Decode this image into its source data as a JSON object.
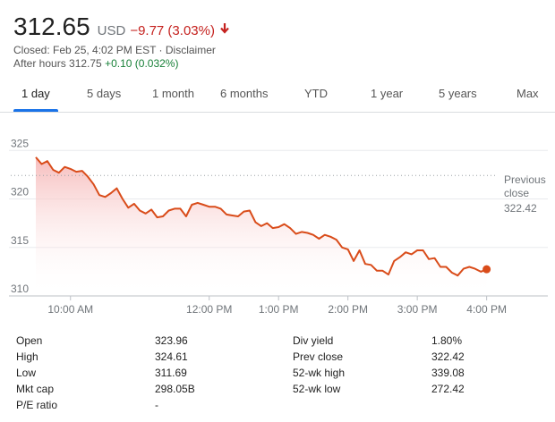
{
  "quote": {
    "price": "312.65",
    "currency": "USD",
    "change": "−9.77 (3.03%)",
    "closed_prefix": "Closed: Feb 25, 4:02 PM EST · ",
    "disclaimer": "Disclaimer",
    "after_hours_prefix": "After hours 312.75 ",
    "after_hours_change": "+0.10 (0.032%)"
  },
  "tabs": [
    "1 day",
    "5 days",
    "1 month",
    "6 months",
    "YTD",
    "1 year",
    "5 years",
    "Max"
  ],
  "active_tab": "1 day",
  "colors": {
    "line": "#d94c1a",
    "negative": "#c5221f",
    "positive": "#188038",
    "accent": "#1a73e8",
    "fill": "#f8c6c6"
  },
  "chart_data": {
    "type": "line",
    "y_ticks": [
      "325",
      "320",
      "315",
      "310"
    ],
    "x_ticks": [
      "10:00 AM",
      "12:00 PM",
      "1:00 PM",
      "2:00 PM",
      "3:00 PM",
      "4:00 PM"
    ],
    "ylim": [
      310,
      326.5
    ],
    "grid": true,
    "previous_close": {
      "label_line1": "Previous",
      "label_line2": "close",
      "value": "322.42",
      "y": 322.42
    },
    "series": [
      {
        "x": [
          "09:30",
          "09:35",
          "09:40",
          "09:45",
          "09:50",
          "09:55",
          "10:00",
          "10:05",
          "10:10",
          "10:15",
          "10:20",
          "10:25",
          "10:30",
          "10:35",
          "10:40",
          "10:45",
          "10:50",
          "10:55",
          "11:00",
          "11:05",
          "11:10",
          "11:15",
          "11:20",
          "11:25",
          "11:30",
          "11:35",
          "11:40",
          "11:45",
          "11:50",
          "11:55",
          "12:00",
          "12:05",
          "12:10",
          "12:15",
          "12:20",
          "12:25",
          "12:30",
          "12:35",
          "12:40",
          "12:45",
          "12:50",
          "12:55",
          "13:00",
          "13:05",
          "13:10",
          "13:15",
          "13:20",
          "13:25",
          "13:30",
          "13:35",
          "13:40",
          "13:45",
          "13:50",
          "13:55",
          "14:00",
          "14:05",
          "14:10",
          "14:15",
          "14:20",
          "14:25",
          "14:30",
          "14:35",
          "14:40",
          "14:45",
          "14:50",
          "14:55",
          "15:00",
          "15:05",
          "15:10",
          "15:15",
          "15:20",
          "15:25",
          "15:30",
          "15:35",
          "15:40",
          "15:45",
          "15:50",
          "15:55",
          "16:00"
        ],
        "values": [
          324.3,
          323.6,
          323.9,
          323.0,
          322.7,
          323.3,
          323.1,
          322.8,
          322.9,
          322.3,
          321.5,
          320.4,
          320.2,
          320.6,
          321.1,
          320.0,
          319.1,
          319.5,
          318.8,
          318.5,
          318.9,
          318.1,
          318.2,
          318.8,
          319.0,
          319.0,
          318.2,
          319.4,
          319.6,
          319.4,
          319.2,
          319.2,
          319.0,
          318.4,
          318.3,
          318.2,
          318.7,
          318.8,
          317.6,
          317.2,
          317.5,
          317.0,
          317.1,
          317.4,
          317.0,
          316.4,
          316.6,
          316.5,
          316.3,
          315.9,
          316.3,
          316.1,
          315.8,
          315.0,
          314.8,
          313.6,
          314.7,
          313.3,
          313.2,
          312.6,
          312.6,
          312.2,
          313.6,
          314.0,
          314.5,
          314.3,
          314.7,
          314.7,
          313.8,
          313.9,
          313.0,
          313.0,
          312.4,
          312.1,
          312.8,
          313.0,
          312.8,
          312.5,
          312.75
        ]
      }
    ]
  },
  "stats": {
    "left": [
      {
        "label": "Open",
        "value": "323.96"
      },
      {
        "label": "High",
        "value": "324.61"
      },
      {
        "label": "Low",
        "value": "311.69"
      },
      {
        "label": "Mkt cap",
        "value": "298.05B"
      },
      {
        "label": "P/E ratio",
        "value": "-"
      }
    ],
    "right": [
      {
        "label": "Div yield",
        "value": "1.80%"
      },
      {
        "label": "Prev close",
        "value": "322.42"
      },
      {
        "label": "52-wk high",
        "value": "339.08"
      },
      {
        "label": "52-wk low",
        "value": "272.42"
      }
    ]
  }
}
